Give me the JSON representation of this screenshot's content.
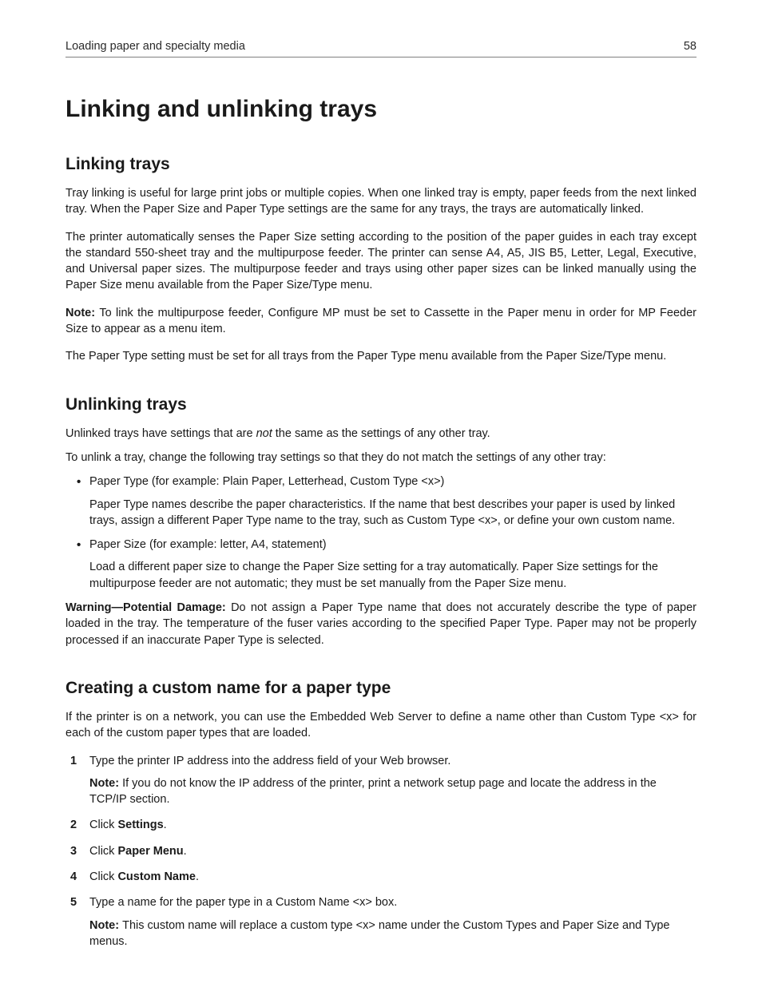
{
  "header": {
    "running_title": "Loading paper and specialty media",
    "page_number": "58"
  },
  "title": "Linking and unlinking trays",
  "sections": {
    "linking": {
      "heading": "Linking trays",
      "p1": "Tray linking is useful for large print jobs or multiple copies. When one linked tray is empty, paper feeds from the next linked tray. When the Paper Size and Paper Type settings are the same for any trays, the trays are automatically linked.",
      "p2": "The printer automatically senses the Paper Size setting according to the position of the paper guides in each tray except the standard 550-sheet tray and the multipurpose feeder. The printer can sense A4, A5, JIS B5, Letter, Legal, Executive, and Universal paper sizes. The multipurpose feeder and trays using other paper sizes can be linked manually using the Paper Size menu available from the Paper Size/Type menu.",
      "note_label": "Note: ",
      "note_text": "To link the multipurpose feeder, Configure MP must be set to Cassette in the Paper menu in order for MP Feeder Size to appear as a menu item.",
      "p3": "The Paper Type setting must be set for all trays from the Paper Type menu available from the Paper Size/Type menu."
    },
    "unlinking": {
      "heading": "Unlinking trays",
      "p1_a": "Unlinked trays have settings that are ",
      "p1_not": "not",
      "p1_b": " the same as the settings of any other tray.",
      "p2": "To unlink a tray, change the following tray settings so that they do not match the settings of any other tray:",
      "bullet1_lead": "Paper Type (for example: Plain Paper, Letterhead, Custom Type <x>)",
      "bullet1_sub": "Paper Type names describe the paper characteristics. If the name that best describes your paper is used by linked trays, assign a different Paper Type name to the tray, such as Custom Type <x>, or define your own custom name.",
      "bullet2_lead": "Paper Size (for example: letter, A4, statement)",
      "bullet2_sub": "Load a different paper size to change the Paper Size setting for a tray automatically. Paper Size settings for the multipurpose feeder are not automatic; they must be set manually from the Paper Size menu.",
      "warn_label": "Warning—Potential Damage: ",
      "warn_text": "Do not assign a Paper Type name that does not accurately describe the type of paper loaded in the tray. The temperature of the fuser varies according to the specified Paper Type. Paper may not be properly processed if an inaccurate Paper Type is selected."
    },
    "custom": {
      "heading": "Creating a custom name for a paper type",
      "intro": "If the printer is on a network, you can use the Embedded Web Server to define a name other than Custom Type <x> for each of the custom paper types that are loaded.",
      "step1": "Type the printer IP address into the address field of your Web browser.",
      "step1_note_label": "Note: ",
      "step1_note_text": "If you do not know the IP address of the printer, print a network setup page and locate the address in the TCP/IP section.",
      "step2_a": "Click ",
      "step2_b": "Settings",
      "step2_c": ".",
      "step3_a": "Click ",
      "step3_b": "Paper Menu",
      "step3_c": ".",
      "step4_a": "Click ",
      "step4_b": "Custom Name",
      "step4_c": ".",
      "step5": "Type a name for the paper type in a Custom Name <x> box.",
      "step5_note_label": "Note: ",
      "step5_note_text": "This custom name will replace a custom type <x> name under the Custom Types and Paper Size and Type menus."
    }
  }
}
